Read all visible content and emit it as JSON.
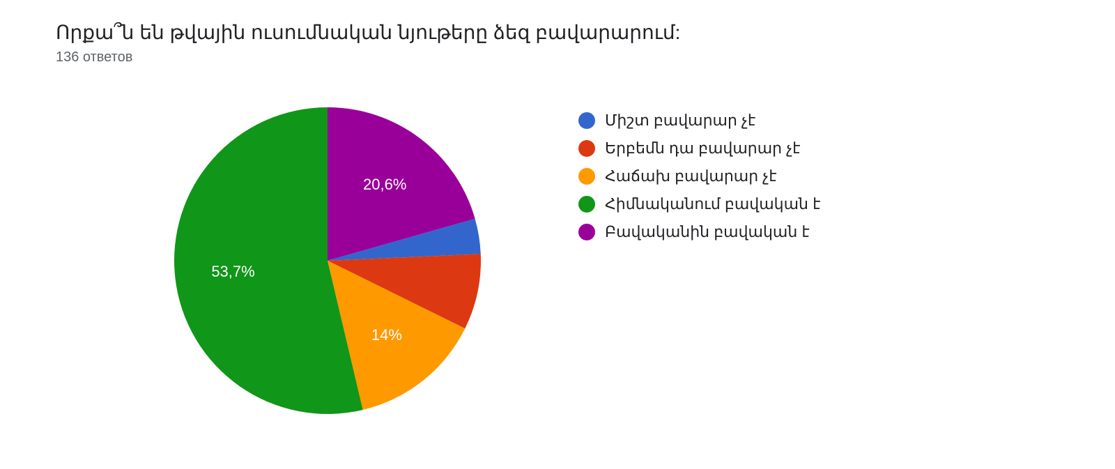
{
  "title": "Որքա՞ն են թվային ուսումնական նյութերը ձեզ բավարարում:",
  "subtitle": "136 ответов",
  "chart": {
    "type": "pie",
    "background_color": "#ffffff",
    "label_fontsize": 22,
    "label_color": "#ffffff",
    "legend_fontsize": 22,
    "slices": [
      {
        "label": "Միշտ բավարար չէ",
        "value": 3.7,
        "color": "#3366cc",
        "show_label": false,
        "display": ""
      },
      {
        "label": "Երբեմն դա բավարար չէ",
        "value": 8.0,
        "color": "#dc3912",
        "show_label": false,
        "display": ""
      },
      {
        "label": "Հաճախ բավարար չէ",
        "value": 14.0,
        "color": "#ff9900",
        "show_label": true,
        "display": "14%"
      },
      {
        "label": "Հիմնականում բավական է",
        "value": 53.7,
        "color": "#109618",
        "show_label": true,
        "display": "53,7%"
      },
      {
        "label": "Բավականին բավական է",
        "value": 20.6,
        "color": "#990099",
        "show_label": true,
        "display": "20,6%"
      }
    ]
  }
}
